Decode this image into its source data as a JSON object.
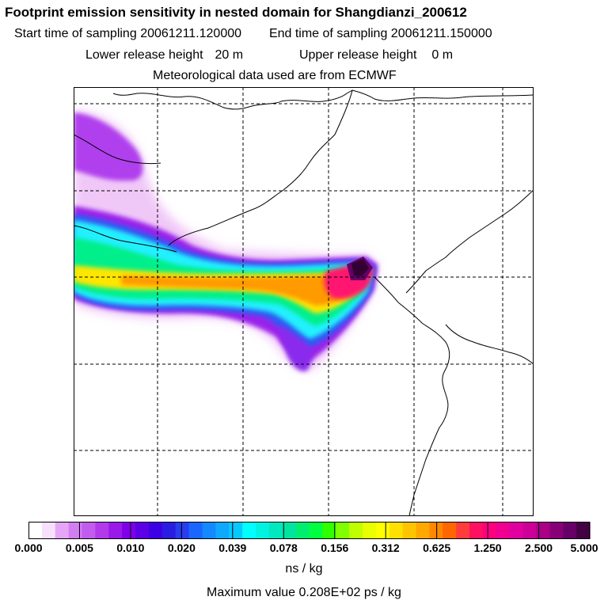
{
  "header": {
    "title": "Footprint emission sensitivity in nested domain for Shangdianzi_200612",
    "start_label": "Start time of sampling",
    "start_value": "20061211.120000",
    "end_label": "End time of sampling",
    "end_value": "20061211.150000",
    "lower_label": "Lower release height",
    "lower_value": "20 m",
    "upper_label": "Upper release height",
    "upper_value": "0 m",
    "met_line": "Meteorological data used are from ECMWF"
  },
  "colorbar": {
    "ticks": [
      "0.000",
      "0.005",
      "0.010",
      "0.020",
      "0.039",
      "0.078",
      "0.156",
      "0.312",
      "0.625",
      "1.250",
      "2.500",
      "5.000"
    ],
    "colors": [
      "#ffffff",
      "#f7e0fb",
      "#e6a6f7",
      "#d27ef2",
      "#c25cee",
      "#b23aea",
      "#9b19e8",
      "#7f00e8",
      "#5c00e6",
      "#3d00e4",
      "#2a1ce0",
      "#2a3cf0",
      "#1a66ff",
      "#1488ff",
      "#0fa8ff",
      "#08c8ff",
      "#00ffff",
      "#00f2e0",
      "#00e8c0",
      "#00e4a0",
      "#00ee70",
      "#00ff40",
      "#30ff00",
      "#80ff00",
      "#c0ff00",
      "#e8ff00",
      "#ffff00",
      "#ffe000",
      "#ffc400",
      "#ffa800",
      "#ff8800",
      "#ff6600",
      "#ff3c3c",
      "#ff1060",
      "#ff0080",
      "#f00090",
      "#e000a0",
      "#cc0099",
      "#aa0088",
      "#880077",
      "#660066",
      "#440044"
    ],
    "unit": "ns / kg",
    "max_text": "Maximum value  0.208E+02 ps / kg"
  }
}
